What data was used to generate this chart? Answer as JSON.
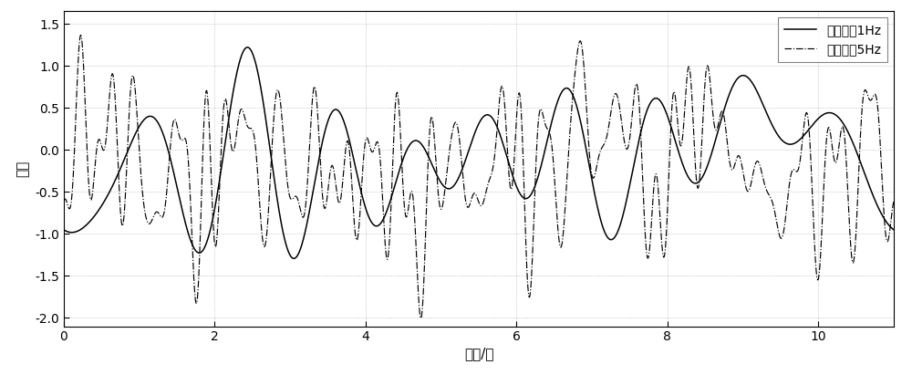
{
  "title": "",
  "xlabel": "时间/秒",
  "ylabel": "幅度",
  "xlim": [
    0,
    11
  ],
  "ylim": [
    -2.1,
    1.65
  ],
  "yticks": [
    -2.0,
    -1.5,
    -1.0,
    -0.5,
    0.0,
    0.5,
    1.0,
    1.5
  ],
  "xticks": [
    0,
    2,
    4,
    6,
    8,
    10
  ],
  "legend1": "衰落带割1Hz",
  "legend2": "衰落带割5Hz",
  "line1_color": "#000000",
  "line2_color": "#000000",
  "background_color": "#ffffff",
  "grid_color": "#aaaaaa",
  "figsize": [
    10.0,
    4.11
  ],
  "dpi": 100,
  "seed1": 7,
  "seed2": 3,
  "bw1": 1.0,
  "bw2": 5.0,
  "scale1": 0.58,
  "scale2": 0.62
}
